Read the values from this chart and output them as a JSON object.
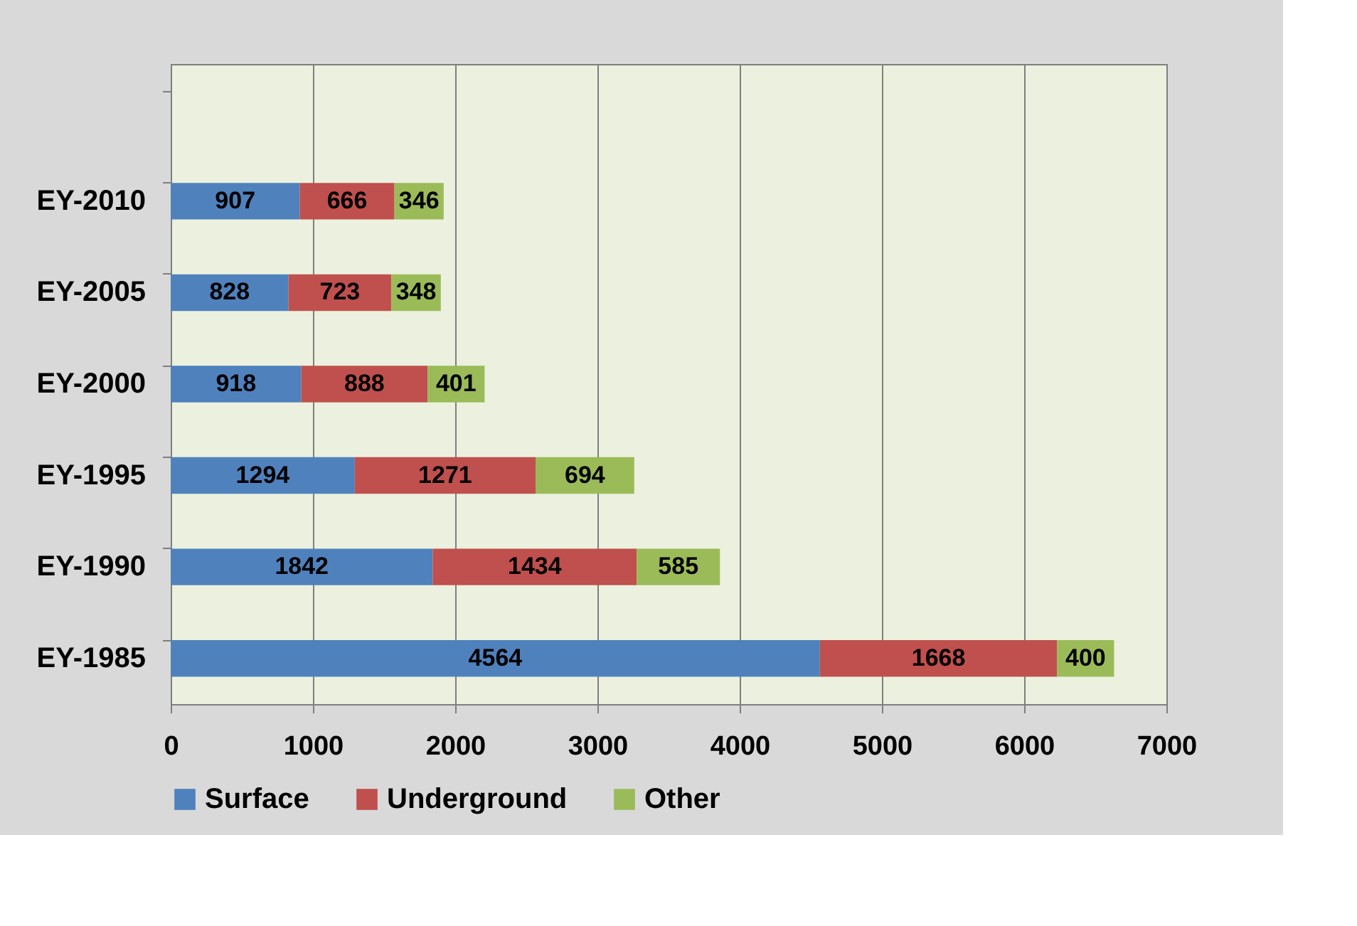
{
  "chart_data": {
    "type": "bar",
    "orientation": "horizontal",
    "stacked": true,
    "data_labels": true,
    "grid": "x",
    "legend": "bottom",
    "categories": [
      null,
      "EY-2010",
      "EY-2005",
      "EY-2000",
      "EY-1995",
      "EY-1990",
      "EY-1985"
    ],
    "series": [
      {
        "name": "Surface",
        "color": "#4f81bd",
        "values": [
          null,
          907,
          828,
          918,
          1294,
          1842,
          4564
        ]
      },
      {
        "name": "Underground",
        "color": "#c0504d",
        "values": [
          null,
          666,
          723,
          888,
          1271,
          1434,
          1668
        ]
      },
      {
        "name": "Other",
        "color": "#9bbb59",
        "values": [
          null,
          346,
          348,
          401,
          694,
          585,
          400
        ]
      }
    ],
    "xlim": [
      0,
      7000
    ],
    "xticks": [
      0,
      1000,
      2000,
      3000,
      4000,
      5000,
      6000,
      7000
    ]
  }
}
